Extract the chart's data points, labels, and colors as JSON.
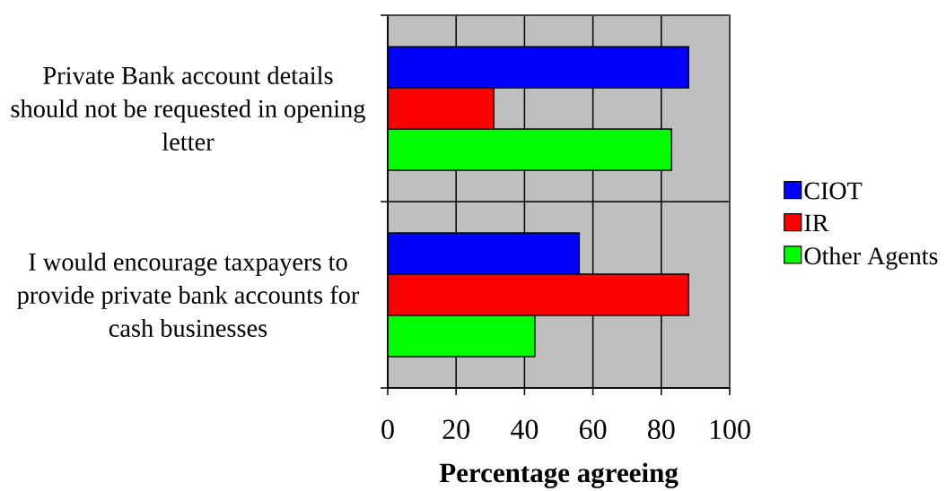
{
  "chart_data": {
    "type": "bar",
    "orientation": "horizontal",
    "categories": [
      "Private Bank account details should not be requested in opening letter",
      "I would encourage taxpayers to provide private bank accounts for cash businesses"
    ],
    "series": [
      {
        "name": "CIOT",
        "color": "#0000ff",
        "values": [
          88,
          56
        ]
      },
      {
        "name": "IR",
        "color": "#ff0000",
        "values": [
          31,
          88
        ]
      },
      {
        "name": "Other Agents",
        "color": "#00ff00",
        "values": [
          83,
          43
        ]
      }
    ],
    "xlabel": "Percentage agreeing",
    "xlim": [
      0,
      100
    ],
    "xticks": [
      0,
      20,
      40,
      60,
      80,
      100
    ],
    "grid": true,
    "legend": "right"
  }
}
